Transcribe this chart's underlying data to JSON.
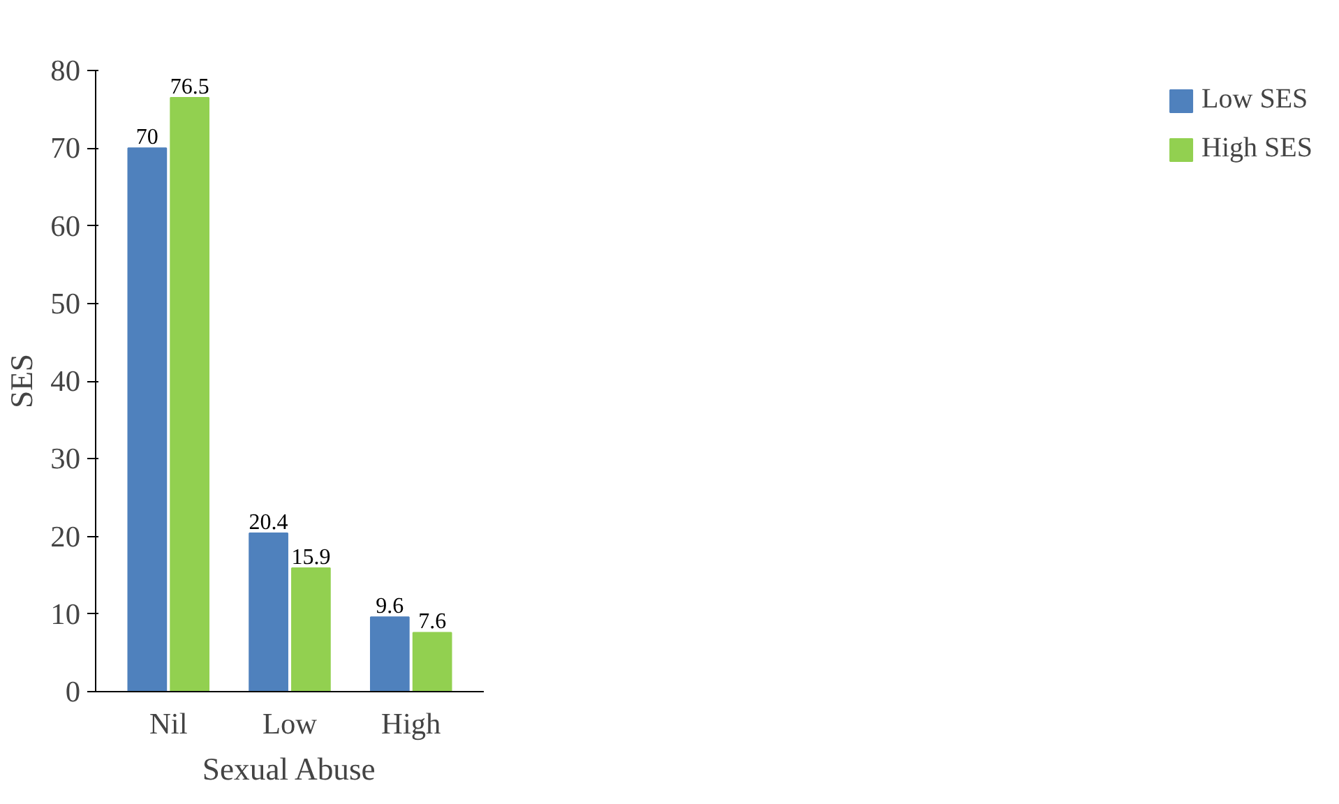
{
  "chart_data": {
    "type": "bar",
    "xlabel": "Sexual Abuse",
    "ylabel": "SES",
    "categories": [
      "Nil",
      "Low",
      "High"
    ],
    "series": [
      {
        "name": "Low SES",
        "color": "#4f81bd",
        "values": [
          70,
          20.4,
          9.6
        ]
      },
      {
        "name": "High SES",
        "color": "#92d050",
        "values": [
          76.5,
          15.9,
          7.6
        ]
      }
    ],
    "ylim": [
      0,
      80
    ],
    "yticks": [
      0,
      10,
      20,
      30,
      40,
      50,
      60,
      70,
      80
    ],
    "grid": false,
    "legend": "right",
    "data_labels": true
  }
}
